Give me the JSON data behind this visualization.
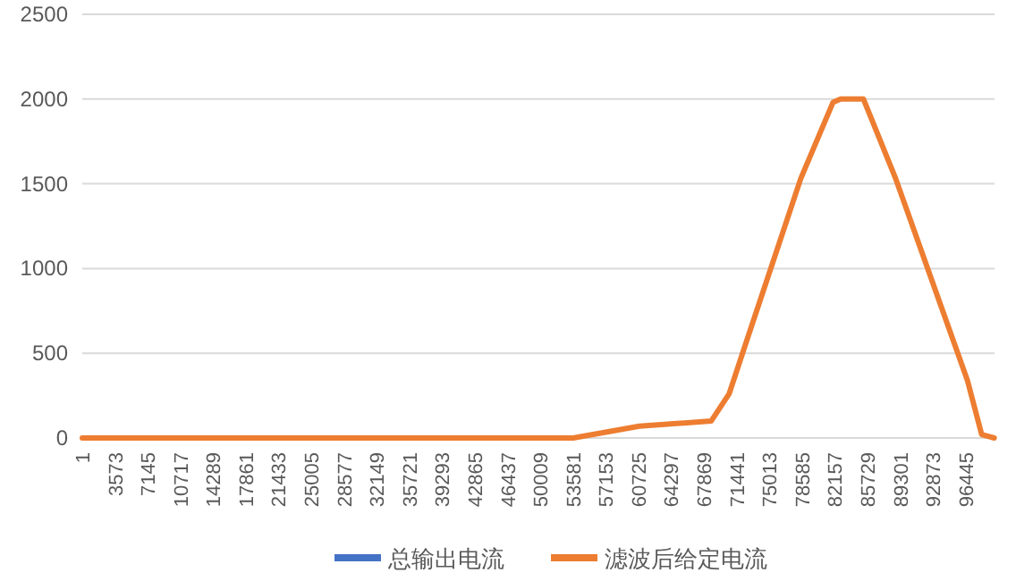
{
  "chart_data": {
    "type": "line",
    "x": [
      1,
      53600,
      60840,
      68660,
      70620,
      72580,
      78440,
      81960,
      82800,
      85290,
      88810,
      96640,
      98200,
      99570
    ],
    "series": [
      {
        "name": "总输出电流",
        "color": "#4472c4",
        "values": [
          null,
          null,
          null,
          null,
          null,
          null,
          null,
          null,
          null,
          null,
          null,
          null,
          null,
          null
        ]
      },
      {
        "name": "滤波后给定电流",
        "color": "#ed7d31",
        "values": [
          0,
          0,
          70,
          100,
          260,
          580,
          1530,
          1980,
          2000,
          2000,
          1530,
          340,
          20,
          0
        ]
      }
    ],
    "xlim": [
      1,
      99600
    ],
    "xticks": [
      1,
      3573,
      7145,
      10717,
      14289,
      17861,
      21433,
      25005,
      28577,
      32149,
      35721,
      39293,
      42865,
      46437,
      50009,
      53581,
      57153,
      60725,
      64297,
      67869,
      71441,
      75013,
      78585,
      82157,
      85729,
      89301,
      92873,
      96445
    ],
    "ylim": [
      0,
      2500
    ],
    "yticks": [
      0,
      500,
      1000,
      1500,
      2000,
      2500
    ],
    "grid": "y",
    "legend": "bottom"
  }
}
